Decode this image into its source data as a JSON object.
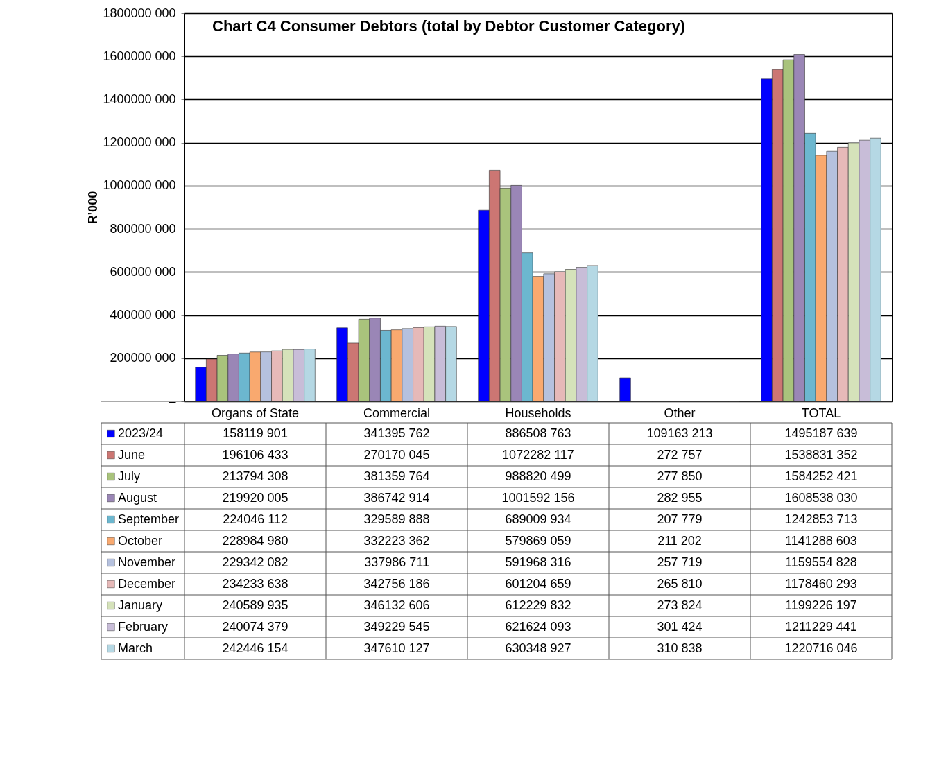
{
  "chart_data": {
    "type": "bar",
    "title": "Chart C4 Consumer Debtors (total by Debtor Customer Category)",
    "ylabel": "R'000",
    "categories": [
      "Organs of State",
      "Commercial",
      "Households",
      "Other",
      "TOTAL"
    ],
    "ylim": [
      0,
      1800000000
    ],
    "yticks": [
      {
        "value": 0,
        "label": "–"
      },
      {
        "value": 200000000,
        "label": "200000 000"
      },
      {
        "value": 400000000,
        "label": "400000 000"
      },
      {
        "value": 600000000,
        "label": "600000 000"
      },
      {
        "value": 800000000,
        "label": "800000 000"
      },
      {
        "value": 1000000000,
        "label": "1000000 000"
      },
      {
        "value": 1200000000,
        "label": "1200000 000"
      },
      {
        "value": 1400000000,
        "label": "1400000 000"
      },
      {
        "value": 1600000000,
        "label": "1600000 000"
      },
      {
        "value": 1800000000,
        "label": "1800000 000"
      }
    ],
    "grid": "y",
    "legend": "bottom",
    "series": [
      {
        "name": "2023/24",
        "color": "#0000ff",
        "values": [
          158119901,
          341395762,
          886508763,
          109163213,
          1495187639
        ],
        "value_labels": [
          "158119 901",
          "341395 762",
          "886508 763",
          "109163 213",
          "1495187 639"
        ]
      },
      {
        "name": "June",
        "color": "#cc7673",
        "values": [
          196106433,
          270170045,
          1072282117,
          272757,
          1538831352
        ],
        "value_labels": [
          "196106 433",
          "270170 045",
          "1072282 117",
          "272 757",
          "1538831 352"
        ]
      },
      {
        "name": "July",
        "color": "#a9c37c",
        "values": [
          213794308,
          381359764,
          988820499,
          277850,
          1584252421
        ],
        "value_labels": [
          "213794 308",
          "381359 764",
          "988820 499",
          "277 850",
          "1584252 421"
        ]
      },
      {
        "name": "August",
        "color": "#9a86b6",
        "values": [
          219920005,
          386742914,
          1001592156,
          282955,
          1608538030
        ],
        "value_labels": [
          "219920 005",
          "386742 914",
          "1001592 156",
          "282 955",
          "1608538 030"
        ]
      },
      {
        "name": "September",
        "color": "#6cb7cf",
        "values": [
          224046112,
          329589888,
          689009934,
          207779,
          1242853713
        ],
        "value_labels": [
          "224046 112",
          "329589 888",
          "689009 934",
          "207 779",
          "1242853 713"
        ]
      },
      {
        "name": "October",
        "color": "#f9a96f",
        "values": [
          228984980,
          332223362,
          579869059,
          211202,
          1141288603
        ],
        "value_labels": [
          "228984 980",
          "332223 362",
          "579869 059",
          "211 202",
          "1141288 603"
        ]
      },
      {
        "name": "November",
        "color": "#b5c1de",
        "values": [
          229342082,
          337986711,
          591968316,
          257719,
          1159554828
        ],
        "value_labels": [
          "229342 082",
          "337986 711",
          "591968 316",
          "257 719",
          "1159554 828"
        ]
      },
      {
        "name": "December",
        "color": "#e6b9b8",
        "values": [
          234233638,
          342756186,
          601204659,
          265810,
          1178460293
        ],
        "value_labels": [
          "234233 638",
          "342756 186",
          "601204 659",
          "265 810",
          "1178460 293"
        ]
      },
      {
        "name": "January",
        "color": "#d5e2ba",
        "values": [
          240589935,
          346132606,
          612229832,
          273824,
          1199226197
        ],
        "value_labels": [
          "240589 935",
          "346132 606",
          "612229 832",
          "273 824",
          "1199226 197"
        ]
      },
      {
        "name": "February",
        "color": "#c8bdd8",
        "values": [
          240074379,
          349229545,
          621624093,
          301424,
          1211229441
        ],
        "value_labels": [
          "240074 379",
          "349229 545",
          "621624 093",
          "301 424",
          "1211229 441"
        ]
      },
      {
        "name": "March",
        "color": "#b5d8e4",
        "values": [
          242446154,
          347610127,
          630348927,
          310838,
          1220716046
        ],
        "value_labels": [
          "242446 154",
          "347610 127",
          "630348 927",
          "310 838",
          "1220716 046"
        ]
      }
    ]
  }
}
